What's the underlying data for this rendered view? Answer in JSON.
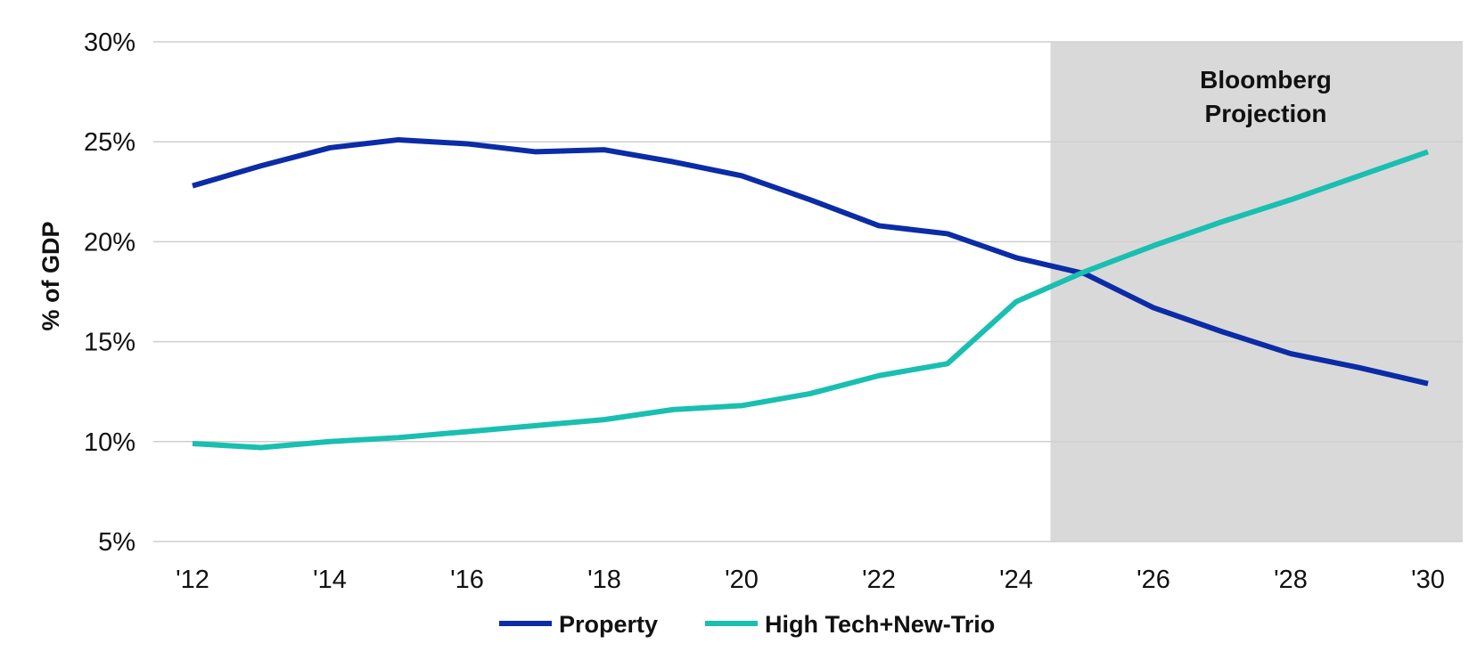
{
  "chart_data": {
    "type": "line",
    "title": "",
    "xlabel": "",
    "ylabel": "% of GDP",
    "x": [
      2012,
      2013,
      2014,
      2015,
      2016,
      2017,
      2018,
      2019,
      2020,
      2021,
      2022,
      2023,
      2024,
      2025,
      2026,
      2027,
      2028,
      2029,
      2030
    ],
    "x_tick_labels": [
      "'12",
      "'14",
      "'16",
      "'18",
      "'20",
      "'22",
      "'24",
      "'26",
      "'28",
      "'30"
    ],
    "x_tick_values": [
      2012,
      2014,
      2016,
      2018,
      2020,
      2022,
      2024,
      2026,
      2028,
      2030
    ],
    "y_tick_labels": [
      "5%",
      "10%",
      "15%",
      "20%",
      "25%",
      "30%"
    ],
    "y_tick_values": [
      5,
      10,
      15,
      20,
      25,
      30
    ],
    "ylim": [
      5,
      30
    ],
    "grid": "horizontal",
    "legend_position": "bottom",
    "series": [
      {
        "name": "Property",
        "color": "#0b2ca6",
        "values": [
          22.8,
          23.8,
          24.7,
          25.1,
          24.9,
          24.5,
          24.6,
          24.0,
          23.3,
          22.1,
          20.8,
          20.4,
          19.2,
          18.4,
          16.7,
          15.5,
          14.4,
          13.7,
          12.9
        ]
      },
      {
        "name": "High Tech+New-Trio",
        "color": "#19bfb0",
        "values": [
          9.9,
          9.7,
          10.0,
          10.2,
          10.5,
          10.8,
          11.1,
          11.6,
          11.8,
          12.4,
          13.3,
          13.9,
          17.0,
          18.5,
          19.8,
          21.0,
          22.1,
          23.3,
          24.5
        ]
      }
    ],
    "annotations": [
      {
        "text_lines": [
          "Bloomberg",
          "Projection"
        ],
        "shaded_from": 2024.5,
        "shaded_to": 2030.5,
        "shade_color": "#d9d9d9"
      }
    ]
  }
}
